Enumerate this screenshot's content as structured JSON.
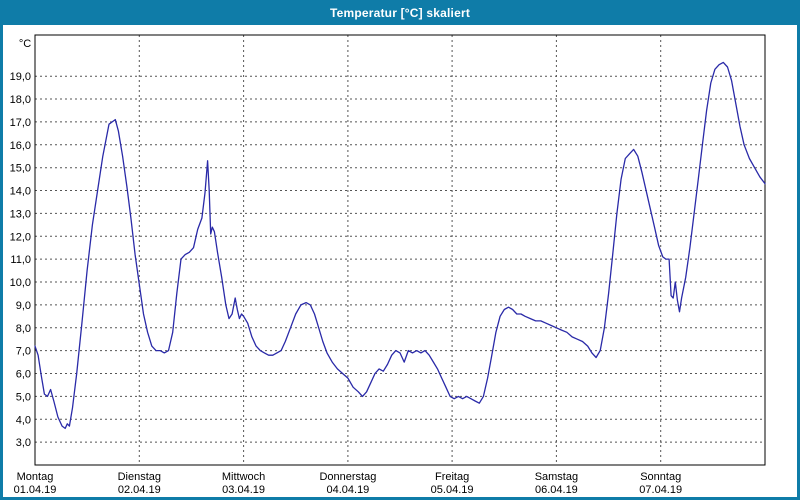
{
  "window": {
    "title": "Temperatur [°C] skaliert"
  },
  "colors": {
    "titlebar": "#0f7ca8",
    "window_border": "#0f7ca8",
    "plot_background": "#ffffff",
    "plot_border": "#000000",
    "grid": "#555555",
    "line": "#2a2aa8",
    "label": "#000000"
  },
  "chart_data": {
    "type": "line",
    "title": "Temperatur [°C] skaliert",
    "xlabel": "",
    "ylabel": "°C",
    "grid": true,
    "legend": "none",
    "xlim": [
      0,
      7
    ],
    "ylim": [
      2.0,
      20.8
    ],
    "yticks": [
      3,
      4,
      5,
      6,
      7,
      8,
      9,
      10,
      11,
      12,
      13,
      14,
      15,
      16,
      17,
      18,
      19
    ],
    "ytick_labels": [
      "3,0",
      "4,0",
      "5,0",
      "6,0",
      "7,0",
      "8,0",
      "9,0",
      "10,0",
      "11,0",
      "12,0",
      "13,0",
      "14,0",
      "15,0",
      "16,0",
      "17,0",
      "18,0",
      "19,0"
    ],
    "x_days": [
      {
        "name": "Montag",
        "date": "01.04.19"
      },
      {
        "name": "Dienstag",
        "date": "02.04.19"
      },
      {
        "name": "Mittwoch",
        "date": "03.04.19"
      },
      {
        "name": "Donnerstag",
        "date": "04.04.19"
      },
      {
        "name": "Freitag",
        "date": "05.04.19"
      },
      {
        "name": "Samstag",
        "date": "06.04.19"
      },
      {
        "name": "Sonntag",
        "date": "07.04.19"
      }
    ],
    "series": [
      {
        "name": "Temperatur",
        "color": "#2a2aa8",
        "points": [
          [
            0.0,
            7.2
          ],
          [
            0.03,
            6.8
          ],
          [
            0.06,
            5.9
          ],
          [
            0.09,
            5.1
          ],
          [
            0.12,
            5.0
          ],
          [
            0.15,
            5.3
          ],
          [
            0.18,
            4.8
          ],
          [
            0.22,
            4.1
          ],
          [
            0.26,
            3.7
          ],
          [
            0.29,
            3.6
          ],
          [
            0.31,
            3.8
          ],
          [
            0.33,
            3.7
          ],
          [
            0.36,
            4.5
          ],
          [
            0.4,
            6.0
          ],
          [
            0.45,
            8.2
          ],
          [
            0.5,
            10.5
          ],
          [
            0.55,
            12.5
          ],
          [
            0.6,
            14.0
          ],
          [
            0.65,
            15.5
          ],
          [
            0.68,
            16.2
          ],
          [
            0.71,
            16.9
          ],
          [
            0.74,
            17.0
          ],
          [
            0.77,
            17.1
          ],
          [
            0.8,
            16.6
          ],
          [
            0.84,
            15.5
          ],
          [
            0.88,
            14.2
          ],
          [
            0.92,
            12.8
          ],
          [
            0.96,
            11.2
          ],
          [
            1.0,
            9.9
          ],
          [
            1.04,
            8.6
          ],
          [
            1.08,
            7.8
          ],
          [
            1.12,
            7.2
          ],
          [
            1.16,
            7.0
          ],
          [
            1.2,
            7.0
          ],
          [
            1.24,
            6.9
          ],
          [
            1.28,
            7.0
          ],
          [
            1.32,
            7.8
          ],
          [
            1.36,
            9.5
          ],
          [
            1.4,
            11.0
          ],
          [
            1.44,
            11.2
          ],
          [
            1.48,
            11.3
          ],
          [
            1.52,
            11.5
          ],
          [
            1.56,
            12.3
          ],
          [
            1.6,
            12.8
          ],
          [
            1.63,
            13.9
          ],
          [
            1.655,
            15.3
          ],
          [
            1.67,
            14.0
          ],
          [
            1.685,
            12.1
          ],
          [
            1.7,
            12.4
          ],
          [
            1.72,
            12.2
          ],
          [
            1.75,
            11.3
          ],
          [
            1.79,
            10.2
          ],
          [
            1.83,
            9.0
          ],
          [
            1.86,
            8.4
          ],
          [
            1.89,
            8.6
          ],
          [
            1.92,
            9.3
          ],
          [
            1.94,
            8.8
          ],
          [
            1.96,
            8.4
          ],
          [
            1.98,
            8.6
          ],
          [
            2.0,
            8.5
          ],
          [
            2.04,
            8.2
          ],
          [
            2.08,
            7.6
          ],
          [
            2.12,
            7.2
          ],
          [
            2.16,
            7.0
          ],
          [
            2.2,
            6.9
          ],
          [
            2.24,
            6.8
          ],
          [
            2.28,
            6.8
          ],
          [
            2.32,
            6.9
          ],
          [
            2.36,
            7.0
          ],
          [
            2.4,
            7.4
          ],
          [
            2.45,
            8.0
          ],
          [
            2.5,
            8.6
          ],
          [
            2.55,
            9.0
          ],
          [
            2.6,
            9.1
          ],
          [
            2.64,
            9.0
          ],
          [
            2.68,
            8.6
          ],
          [
            2.72,
            8.0
          ],
          [
            2.76,
            7.4
          ],
          [
            2.8,
            6.9
          ],
          [
            2.85,
            6.5
          ],
          [
            2.9,
            6.2
          ],
          [
            2.95,
            6.0
          ],
          [
            3.0,
            5.8
          ],
          [
            3.05,
            5.4
          ],
          [
            3.1,
            5.2
          ],
          [
            3.14,
            5.0
          ],
          [
            3.18,
            5.2
          ],
          [
            3.22,
            5.6
          ],
          [
            3.26,
            6.0
          ],
          [
            3.3,
            6.2
          ],
          [
            3.34,
            6.1
          ],
          [
            3.38,
            6.4
          ],
          [
            3.42,
            6.8
          ],
          [
            3.46,
            7.0
          ],
          [
            3.5,
            6.9
          ],
          [
            3.54,
            6.5
          ],
          [
            3.58,
            7.0
          ],
          [
            3.62,
            6.9
          ],
          [
            3.66,
            7.0
          ],
          [
            3.7,
            6.9
          ],
          [
            3.74,
            7.0
          ],
          [
            3.78,
            6.8
          ],
          [
            3.82,
            6.5
          ],
          [
            3.86,
            6.2
          ],
          [
            3.9,
            5.8
          ],
          [
            3.94,
            5.4
          ],
          [
            3.98,
            5.0
          ],
          [
            4.02,
            4.9
          ],
          [
            4.06,
            5.0
          ],
          [
            4.1,
            4.9
          ],
          [
            4.14,
            5.0
          ],
          [
            4.18,
            4.9
          ],
          [
            4.22,
            4.8
          ],
          [
            4.26,
            4.7
          ],
          [
            4.3,
            5.0
          ],
          [
            4.34,
            5.8
          ],
          [
            4.38,
            6.8
          ],
          [
            4.42,
            7.8
          ],
          [
            4.46,
            8.5
          ],
          [
            4.5,
            8.8
          ],
          [
            4.54,
            8.9
          ],
          [
            4.58,
            8.8
          ],
          [
            4.62,
            8.6
          ],
          [
            4.66,
            8.6
          ],
          [
            4.7,
            8.5
          ],
          [
            4.75,
            8.4
          ],
          [
            4.8,
            8.3
          ],
          [
            4.85,
            8.3
          ],
          [
            4.9,
            8.2
          ],
          [
            4.95,
            8.1
          ],
          [
            5.0,
            8.0
          ],
          [
            5.05,
            7.9
          ],
          [
            5.1,
            7.8
          ],
          [
            5.15,
            7.6
          ],
          [
            5.2,
            7.5
          ],
          [
            5.25,
            7.4
          ],
          [
            5.3,
            7.2
          ],
          [
            5.34,
            6.9
          ],
          [
            5.38,
            6.7
          ],
          [
            5.42,
            7.0
          ],
          [
            5.46,
            8.0
          ],
          [
            5.5,
            9.5
          ],
          [
            5.54,
            11.2
          ],
          [
            5.58,
            13.0
          ],
          [
            5.62,
            14.5
          ],
          [
            5.66,
            15.4
          ],
          [
            5.7,
            15.6
          ],
          [
            5.74,
            15.8
          ],
          [
            5.78,
            15.5
          ],
          [
            5.82,
            14.8
          ],
          [
            5.86,
            14.0
          ],
          [
            5.9,
            13.2
          ],
          [
            5.94,
            12.4
          ],
          [
            5.98,
            11.6
          ],
          [
            6.02,
            11.1
          ],
          [
            6.05,
            11.0
          ],
          [
            6.08,
            11.0
          ],
          [
            6.1,
            9.4
          ],
          [
            6.12,
            9.3
          ],
          [
            6.14,
            10.0
          ],
          [
            6.16,
            9.2
          ],
          [
            6.18,
            8.7
          ],
          [
            6.2,
            9.3
          ],
          [
            6.24,
            10.2
          ],
          [
            6.28,
            11.5
          ],
          [
            6.32,
            13.0
          ],
          [
            6.36,
            14.5
          ],
          [
            6.4,
            16.0
          ],
          [
            6.44,
            17.5
          ],
          [
            6.48,
            18.7
          ],
          [
            6.52,
            19.3
          ],
          [
            6.56,
            19.5
          ],
          [
            6.6,
            19.6
          ],
          [
            6.64,
            19.4
          ],
          [
            6.68,
            18.8
          ],
          [
            6.72,
            17.8
          ],
          [
            6.76,
            16.8
          ],
          [
            6.8,
            16.0
          ],
          [
            6.85,
            15.4
          ],
          [
            6.9,
            15.0
          ],
          [
            6.95,
            14.6
          ],
          [
            7.0,
            14.3
          ]
        ]
      }
    ]
  }
}
